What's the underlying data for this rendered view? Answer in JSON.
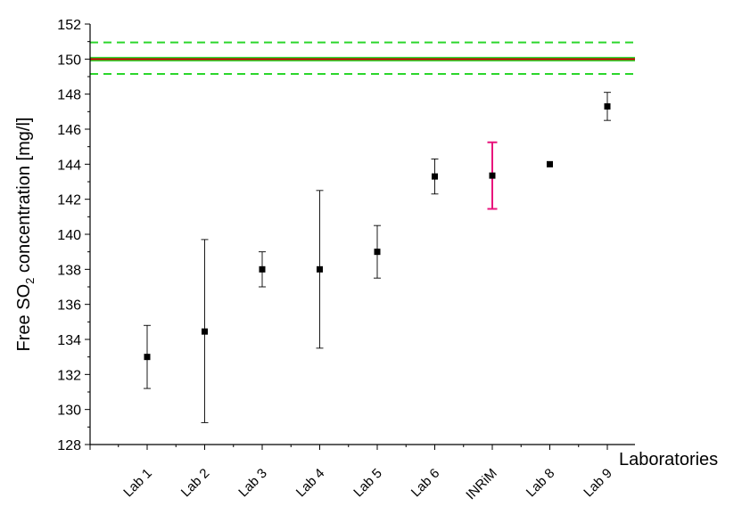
{
  "chart_data": {
    "type": "scatter",
    "ylabel_parts": [
      "Free SO",
      "2",
      " concentration [mg/l]"
    ],
    "xlabel": "Laboratories",
    "ylim": [
      128,
      152
    ],
    "yticks": [
      "128",
      "130",
      "132",
      "134",
      "136",
      "138",
      "140",
      "142",
      "144",
      "146",
      "148",
      "150",
      "152"
    ],
    "grid": false,
    "categories": [
      "Lab 1",
      "Lab 2",
      "Lab 3",
      "Lab 4",
      "Lab 5",
      "Lab 6",
      "INRiM",
      "Lab 8",
      "Lab 9"
    ],
    "values": [
      133.0,
      134.45,
      138.0,
      138.0,
      139.0,
      143.3,
      143.35,
      144.0,
      147.3
    ],
    "error_low": [
      131.2,
      129.25,
      137.0,
      133.5,
      137.5,
      142.3,
      141.45,
      144.0,
      146.5
    ],
    "error_high": [
      134.8,
      139.7,
      139.0,
      142.5,
      140.5,
      144.3,
      145.25,
      144.0,
      148.1
    ],
    "highlight_category": "INRiM",
    "colors": {
      "points": "#000000",
      "highlight_errorbar": "#e8147c",
      "reference_band": "#2bd62b",
      "reference_line": "#c80000"
    },
    "reference_value": 150.0,
    "reference_band_limits": [
      149.15,
      150.95
    ]
  }
}
